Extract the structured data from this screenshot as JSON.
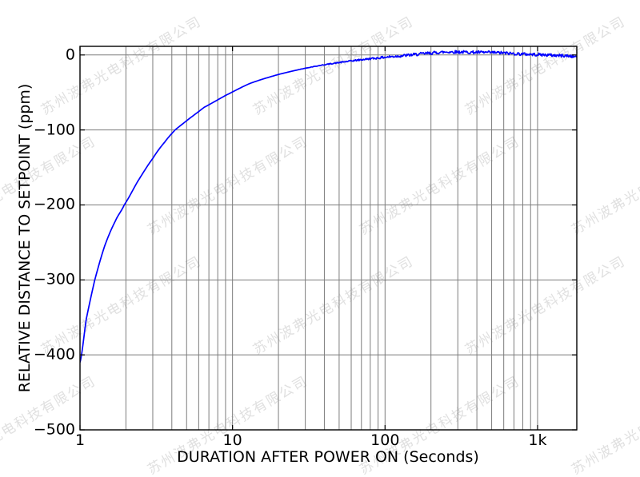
{
  "figure": {
    "background": "#ffffff",
    "watermark": {
      "text": "苏州波弗光电科技有限公司",
      "color": "#e0e0e0",
      "angle_deg": -30
    }
  },
  "chart_data": {
    "type": "line",
    "title": "",
    "xlabel": "DURATION AFTER POWER ON (Seconds)",
    "ylabel": "RELATIVE DISTANCE TO SETPOINT (ppm)",
    "x_scale": "log",
    "y_scale": "linear",
    "xlim": [
      1,
      1808
    ],
    "ylim": [
      -500,
      11.5
    ],
    "grid": {
      "x": "major+minor",
      "y": "major",
      "color": "#7d7d7d",
      "axis_color": "#000000"
    },
    "x_ticks": [
      {
        "v": 1,
        "label": "1"
      },
      {
        "v": 10,
        "label": "10"
      },
      {
        "v": 100,
        "label": "100"
      },
      {
        "v": 1000,
        "label": "1k"
      }
    ],
    "y_ticks": [
      {
        "v": 0,
        "label": "0"
      },
      {
        "v": -100,
        "label": "−100"
      },
      {
        "v": -200,
        "label": "−200"
      },
      {
        "v": -300,
        "label": "−300"
      },
      {
        "v": -400,
        "label": "−400"
      },
      {
        "v": -500,
        "label": "−500"
      }
    ],
    "series": [
      {
        "name": "relative-distance-to-setpoint",
        "color": "#0000ff",
        "points": [
          [
            1,
            -410
          ],
          [
            1.1,
            -352
          ],
          [
            1.25,
            -300
          ],
          [
            1.45,
            -255
          ],
          [
            1.7,
            -222
          ],
          [
            1.95,
            -200
          ],
          [
            2.4,
            -168
          ],
          [
            3,
            -138
          ],
          [
            3.6,
            -116
          ],
          [
            4.2,
            -100
          ],
          [
            5.2,
            -85
          ],
          [
            6.5,
            -70
          ],
          [
            9,
            -54
          ],
          [
            13,
            -38
          ],
          [
            20,
            -26
          ],
          [
            33,
            -16
          ],
          [
            55,
            -9
          ],
          [
            90,
            -4
          ],
          [
            140,
            -0.5
          ],
          [
            200,
            2.5
          ],
          [
            260,
            4
          ],
          [
            400,
            3.5
          ],
          [
            550,
            3
          ],
          [
            700,
            1.8
          ],
          [
            900,
            0.8
          ],
          [
            1100,
            0.2
          ],
          [
            1300,
            -0.6
          ],
          [
            1550,
            -1.2
          ],
          [
            1808,
            -2.2
          ]
        ],
        "noise": {
          "start_x": 25,
          "full_x": 150,
          "amplitude_ppm": 2.0
        }
      }
    ]
  }
}
